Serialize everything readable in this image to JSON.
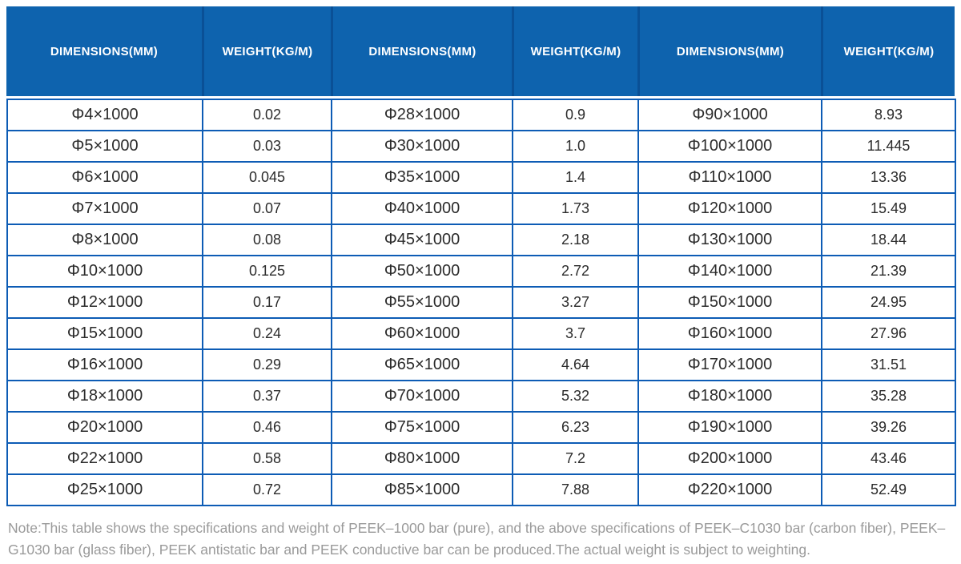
{
  "colors": {
    "header_bg": "#0e63ae",
    "header_divider": "#0a5096",
    "grid_border": "#0d5cb5",
    "cell_text": "#2b2b2b",
    "note_text": "#9a9a9a"
  },
  "table": {
    "headers": [
      "DIMENSIONS(MM)",
      "WEIGHT(KG/M)",
      "DIMENSIONS(MM)",
      "WEIGHT(KG/M)",
      "DIMENSIONS(MM)",
      "WEIGHT(KG/M)"
    ],
    "rows": [
      [
        "Φ4×1000",
        "0.02",
        "Φ28×1000",
        "0.9",
        "Φ90×1000",
        "8.93"
      ],
      [
        "Φ5×1000",
        "0.03",
        "Φ30×1000",
        "1.0",
        "Φ100×1000",
        "11.445"
      ],
      [
        "Φ6×1000",
        "0.045",
        "Φ35×1000",
        "1.4",
        "Φ110×1000",
        "13.36"
      ],
      [
        "Φ7×1000",
        "0.07",
        "Φ40×1000",
        "1.73",
        "Φ120×1000",
        "15.49"
      ],
      [
        "Φ8×1000",
        "0.08",
        "Φ45×1000",
        "2.18",
        "Φ130×1000",
        "18.44"
      ],
      [
        "Φ10×1000",
        "0.125",
        "Φ50×1000",
        "2.72",
        "Φ140×1000",
        "21.39"
      ],
      [
        "Φ12×1000",
        "0.17",
        "Φ55×1000",
        "3.27",
        "Φ150×1000",
        "24.95"
      ],
      [
        "Φ15×1000",
        "0.24",
        "Φ60×1000",
        "3.7",
        "Φ160×1000",
        "27.96"
      ],
      [
        "Φ16×1000",
        "0.29",
        "Φ65×1000",
        "4.64",
        "Φ170×1000",
        "31.51"
      ],
      [
        "Φ18×1000",
        "0.37",
        "Φ70×1000",
        "5.32",
        "Φ180×1000",
        "35.28"
      ],
      [
        "Φ20×1000",
        "0.46",
        "Φ75×1000",
        "6.23",
        "Φ190×1000",
        "39.26"
      ],
      [
        "Φ22×1000",
        "0.58",
        "Φ80×1000",
        "7.2",
        "Φ200×1000",
        "43.46"
      ],
      [
        "Φ25×1000",
        "0.72",
        "Φ85×1000",
        "7.88",
        "Φ220×1000",
        "52.49"
      ]
    ]
  },
  "note": "Note:This table shows the specifications and weight of PEEK–1000 bar (pure), and the above specifications of PEEK–C1030 bar (carbon fiber), PEEK–G1030 bar (glass fiber), PEEK antistatic bar and PEEK conductive bar can be produced.The actual weight is subject to weighting."
}
